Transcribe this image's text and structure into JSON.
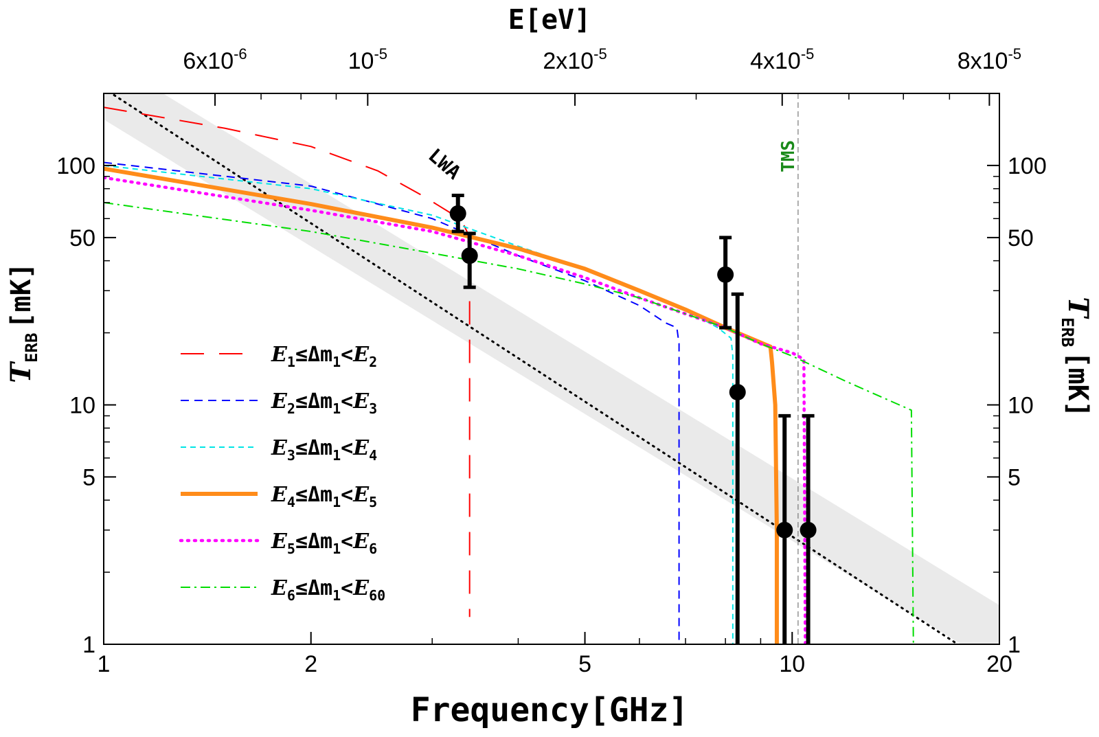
{
  "chart_data": {
    "type": "line",
    "xlabel": "Frequency [GHz]",
    "ylabel_left": "T_ERB [mK]",
    "ylabel_right": "T_ERB [mK]",
    "top_axis_label": "E [eV]",
    "x_scale": "log",
    "y_scale": "log",
    "xlim": [
      1,
      20
    ],
    "ylim": [
      1,
      200
    ],
    "x_ticks": [
      {
        "value": 1,
        "label": "1"
      },
      {
        "value": 2,
        "label": "2"
      },
      {
        "value": 5,
        "label": "5"
      },
      {
        "value": 10,
        "label": "10"
      },
      {
        "value": 20,
        "label": "20"
      }
    ],
    "y_ticks": [
      {
        "value": 1,
        "label": "1"
      },
      {
        "value": 5,
        "label": "5"
      },
      {
        "value": 10,
        "label": "10"
      },
      {
        "value": 50,
        "label": "50"
      },
      {
        "value": 100,
        "label": "100"
      }
    ],
    "top_ticks": [
      {
        "freq": 1.451,
        "label": "6x10",
        "exp": "-6"
      },
      {
        "freq": 2.418,
        "label": "10",
        "exp": "-5"
      },
      {
        "freq": 4.836,
        "label": "2x10",
        "exp": "-5"
      },
      {
        "freq": 9.672,
        "label": "4x10",
        "exp": "-5"
      },
      {
        "freq": 19.34,
        "label": "8x10",
        "exp": "-5"
      }
    ],
    "series": [
      {
        "name": "E1 ≤ Δm1 < E2",
        "color": "#ff0000",
        "style": "longdash",
        "width": 2,
        "x": [
          1,
          1.5,
          2.0,
          2.5,
          2.9,
          3.2,
          3.32,
          3.38,
          3.4,
          3.4
        ],
        "y": [
          175,
          143,
          120,
          95,
          75,
          63,
          58,
          52,
          38,
          1.3
        ]
      },
      {
        "name": "E2 ≤ Δm1 < E3",
        "color": "#0000ff",
        "style": "dash",
        "width": 2,
        "x": [
          1,
          2,
          3,
          4,
          5,
          6,
          6.55,
          6.8,
          6.85,
          6.85
        ],
        "y": [
          103,
          82,
          60,
          42,
          33,
          26,
          22,
          21,
          18,
          1
        ]
      },
      {
        "name": "E3 ≤ Δm1 < E4",
        "color": "#00e5e5",
        "style": "finedash",
        "width": 2,
        "x": [
          1,
          2,
          3,
          4,
          5,
          6,
          7,
          7.8,
          8.15,
          8.2,
          8.2
        ],
        "y": [
          100,
          80,
          62,
          46,
          37,
          30,
          25,
          21,
          19,
          16,
          1
        ]
      },
      {
        "name": "E4 ≤ Δm1 < E5",
        "color": "#ff8c1a",
        "style": "solid",
        "width": 6,
        "x": [
          1,
          2,
          3,
          4,
          5,
          6,
          7,
          8,
          9.3,
          9.35,
          9.45,
          9.5,
          9.5
        ],
        "y": [
          97,
          69,
          55,
          45,
          37,
          30,
          25,
          21,
          17.5,
          15,
          10,
          3,
          1
        ]
      },
      {
        "name": "E5 ≤ Δm1 < E6",
        "color": "#ff00ff",
        "style": "dot",
        "width": 4.5,
        "x": [
          1,
          2,
          3,
          4,
          5,
          6,
          7,
          8,
          9,
          10,
          10.4,
          10.45
        ],
        "y": [
          89,
          65,
          53,
          42,
          34,
          28,
          24,
          21,
          18,
          16.5,
          15.5,
          1
        ]
      },
      {
        "name": "E6 ≤ Δm1 < E60",
        "color": "#00dd00",
        "style": "dashdot",
        "width": 2,
        "x": [
          1,
          2,
          3,
          4,
          5,
          6,
          7,
          8,
          9,
          10,
          12,
          14.9,
          15.0
        ],
        "y": [
          70,
          53,
          43,
          37,
          32,
          28,
          24,
          21,
          18,
          16,
          12.5,
          9.5,
          1
        ]
      }
    ],
    "data_points": [
      {
        "x": 3.27,
        "y": 63,
        "lo": 53,
        "hi": 75
      },
      {
        "x": 3.4,
        "y": 42,
        "lo": 31,
        "hi": 52
      },
      {
        "x": 8.0,
        "y": 35,
        "lo": 21,
        "hi": 50
      },
      {
        "x": 8.33,
        "y": 11.3,
        "lo": 1,
        "hi": 29
      },
      {
        "x": 9.75,
        "y": 3.0,
        "lo": 1,
        "hi": 9
      },
      {
        "x": 10.55,
        "y": 3.0,
        "lo": 1,
        "hi": 9
      }
    ],
    "lwa_fit": {
      "x": [
        1,
        17.4
      ],
      "y": [
        210,
        1
      ],
      "band_factor": 1.35,
      "label": "LWA"
    },
    "tms_marker": {
      "x": 10.2,
      "label": "TMS"
    }
  },
  "legend": {
    "items": [
      {
        "lhs": "E",
        "lhs_sub": "1",
        "mid": "≤Δm",
        "mid_sub": "1",
        "op": "<",
        "rhs": "E",
        "rhs_sub": "2"
      },
      {
        "lhs": "E",
        "lhs_sub": "2",
        "mid": "≤Δm",
        "mid_sub": "1",
        "op": "<",
        "rhs": "E",
        "rhs_sub": "3"
      },
      {
        "lhs": "E",
        "lhs_sub": "3",
        "mid": "≤Δm",
        "mid_sub": "1",
        "op": "<",
        "rhs": "E",
        "rhs_sub": "4"
      },
      {
        "lhs": "E",
        "lhs_sub": "4",
        "mid": "≤Δm",
        "mid_sub": "1",
        "op": "<",
        "rhs": "E",
        "rhs_sub": "5"
      },
      {
        "lhs": "E",
        "lhs_sub": "5",
        "mid": "≤Δm",
        "mid_sub": "1",
        "op": "<",
        "rhs": "E",
        "rhs_sub": "6"
      },
      {
        "lhs": "E",
        "lhs_sub": "6",
        "mid": "≤Δm",
        "mid_sub": "1",
        "op": "<",
        "rhs": "E",
        "rhs_sub": "60"
      }
    ]
  },
  "labels": {
    "x_title_word": "Frequency",
    "x_title_unit": "[GHz]",
    "top_title_word": "E",
    "top_title_unit": "[eV]",
    "y_title_sym": "T",
    "y_title_sub": "ERB",
    "y_title_unit": "[mK]"
  }
}
